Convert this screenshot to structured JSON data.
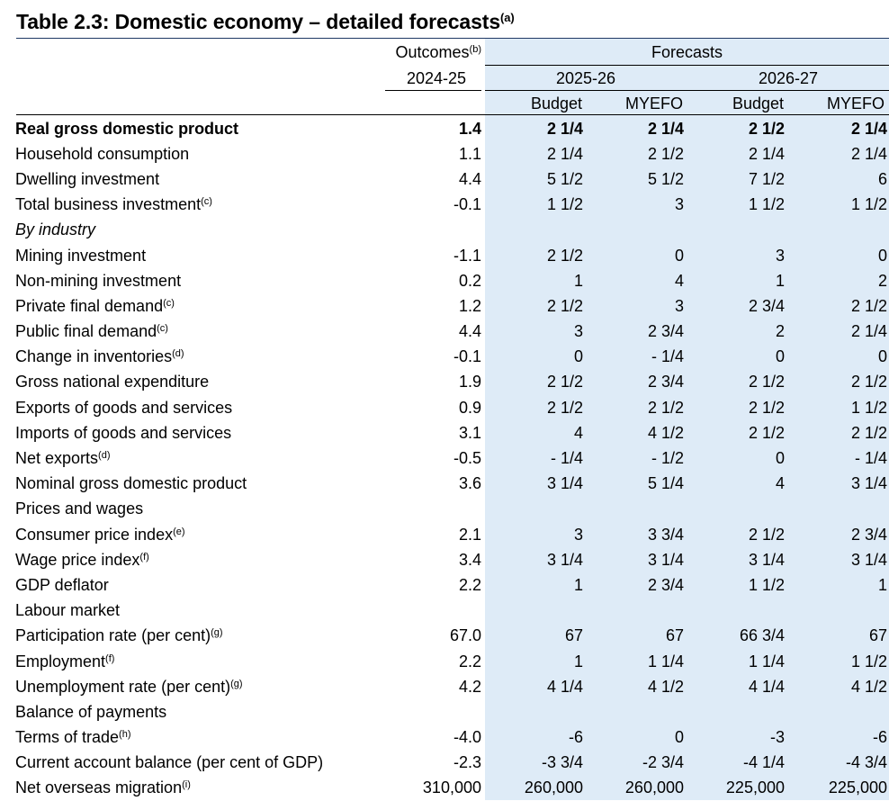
{
  "title": {
    "text": "Table 2.3: Domestic economy – detailed forecasts",
    "note": "(a)"
  },
  "header": {
    "outcomes_label": "Outcomes",
    "outcomes_note": "(b)",
    "outcomes_year": "2024-25",
    "forecasts_label": "Forecasts",
    "year1": "2025-26",
    "year2": "2026-27",
    "sub1": "Budget",
    "sub2": "MYEFO",
    "sub3": "Budget",
    "sub4": "MYEFO"
  },
  "rows": [
    {
      "label": "Real gross domestic product",
      "note": "",
      "bold": true,
      "indent": 0,
      "values": [
        "1.4",
        "2 1/4",
        "2 1/4",
        "2 1/2",
        "2 1/4"
      ]
    },
    {
      "label": "Household consumption",
      "note": "",
      "indent": 0,
      "values": [
        "1.1",
        "2 1/4",
        "2 1/2",
        "2 1/4",
        "2 1/4"
      ]
    },
    {
      "label": "Dwelling investment",
      "note": "",
      "indent": 0,
      "values": [
        "4.4",
        "5 1/2",
        "5 1/2",
        "7 1/2",
        "6"
      ]
    },
    {
      "label": "Total business investment",
      "note": "(c)",
      "indent": 0,
      "values": [
        "-0.1",
        "1 1/2",
        "3",
        "1 1/2",
        "1 1/2"
      ]
    },
    {
      "label": "By industry",
      "note": "",
      "italic": true,
      "indent": 1,
      "values": [
        "",
        "",
        "",
        "",
        ""
      ]
    },
    {
      "label": "Mining investment",
      "note": "",
      "indent": 2,
      "values": [
        "-1.1",
        "2 1/2",
        "0",
        "3",
        "0"
      ]
    },
    {
      "label": "Non-mining investment",
      "note": "",
      "indent": 2,
      "values": [
        "0.2",
        "1",
        "4",
        "1",
        "2"
      ]
    },
    {
      "label": "Private final demand",
      "note": "(c)",
      "indent": 0,
      "values": [
        "1.2",
        "2 1/2",
        "3",
        "2 3/4",
        "2 1/2"
      ]
    },
    {
      "label": "Public final demand",
      "note": "(c)",
      "indent": 0,
      "values": [
        "4.4",
        "3",
        "2 3/4",
        "2",
        "2 1/4"
      ]
    },
    {
      "label": "Change in inventories",
      "note": "(d)",
      "indent": 0,
      "values": [
        "-0.1",
        "0",
        "- 1/4",
        "0",
        "0"
      ]
    },
    {
      "label": "Gross national expenditure",
      "note": "",
      "indent": 0,
      "values": [
        "1.9",
        "2 1/2",
        "2 3/4",
        "2 1/2",
        "2 1/2"
      ]
    },
    {
      "label": "Exports of goods and services",
      "note": "",
      "indent": 0,
      "values": [
        "0.9",
        "2 1/2",
        "2 1/2",
        "2 1/2",
        "1 1/2"
      ]
    },
    {
      "label": "Imports of goods and services",
      "note": "",
      "indent": 0,
      "values": [
        "3.1",
        "4",
        "4 1/2",
        "2 1/2",
        "2 1/2"
      ]
    },
    {
      "label": "Net exports",
      "note": "(d)",
      "indent": 1,
      "values": [
        "-0.5",
        "- 1/4",
        "- 1/2",
        "0",
        "- 1/4"
      ]
    },
    {
      "label": "Nominal gross domestic product",
      "note": "",
      "indent": 0,
      "values": [
        "3.6",
        "3 1/4",
        "5 1/4",
        "4",
        "3 1/4"
      ]
    },
    {
      "label": "Prices and wages",
      "note": "",
      "indent": 0,
      "values": [
        "",
        "",
        "",
        "",
        ""
      ]
    },
    {
      "label": "Consumer price index",
      "note": "(e)",
      "indent": 1,
      "values": [
        "2.1",
        "3",
        "3 3/4",
        "2 1/2",
        "2 3/4"
      ]
    },
    {
      "label": "Wage price index",
      "note": "(f)",
      "indent": 1,
      "values": [
        "3.4",
        "3 1/4",
        "3 1/4",
        "3 1/4",
        "3 1/4"
      ]
    },
    {
      "label": "GDP deflator",
      "note": "",
      "indent": 1,
      "values": [
        "2.2",
        "1",
        "2 3/4",
        "1 1/2",
        "1"
      ]
    },
    {
      "label": "Labour market",
      "note": "",
      "indent": 0,
      "values": [
        "",
        "",
        "",
        "",
        ""
      ]
    },
    {
      "label": "Participation rate (per cent)",
      "note": "(g)",
      "indent": 1,
      "values": [
        "67.0",
        "67",
        "67",
        "66 3/4",
        "67"
      ]
    },
    {
      "label": "Employment",
      "note": "(f)",
      "indent": 1,
      "values": [
        "2.2",
        "1",
        "1 1/4",
        "1 1/4",
        "1 1/2"
      ]
    },
    {
      "label": "Unemployment rate (per cent)",
      "note": "(g)",
      "indent": 1,
      "values": [
        "4.2",
        "4 1/4",
        "4 1/2",
        "4 1/4",
        "4 1/2"
      ]
    },
    {
      "label": "Balance of payments",
      "note": "",
      "indent": 0,
      "values": [
        "",
        "",
        "",
        "",
        ""
      ]
    },
    {
      "label": "Terms of trade",
      "note": "(h)",
      "indent": 1,
      "values": [
        "-4.0",
        "-6",
        "0",
        "-3",
        "-6"
      ]
    },
    {
      "label": "Current account balance (per cent of GDP)",
      "note": "",
      "indent": 1,
      "values": [
        "-2.3",
        "-3 3/4",
        "-2 3/4",
        "-4 1/4",
        "-4 3/4"
      ]
    },
    {
      "label": "Net overseas migration",
      "note": "(i)",
      "indent": 0,
      "values": [
        "310,000",
        "260,000",
        "260,000",
        "225,000",
        "225,000"
      ]
    }
  ]
}
